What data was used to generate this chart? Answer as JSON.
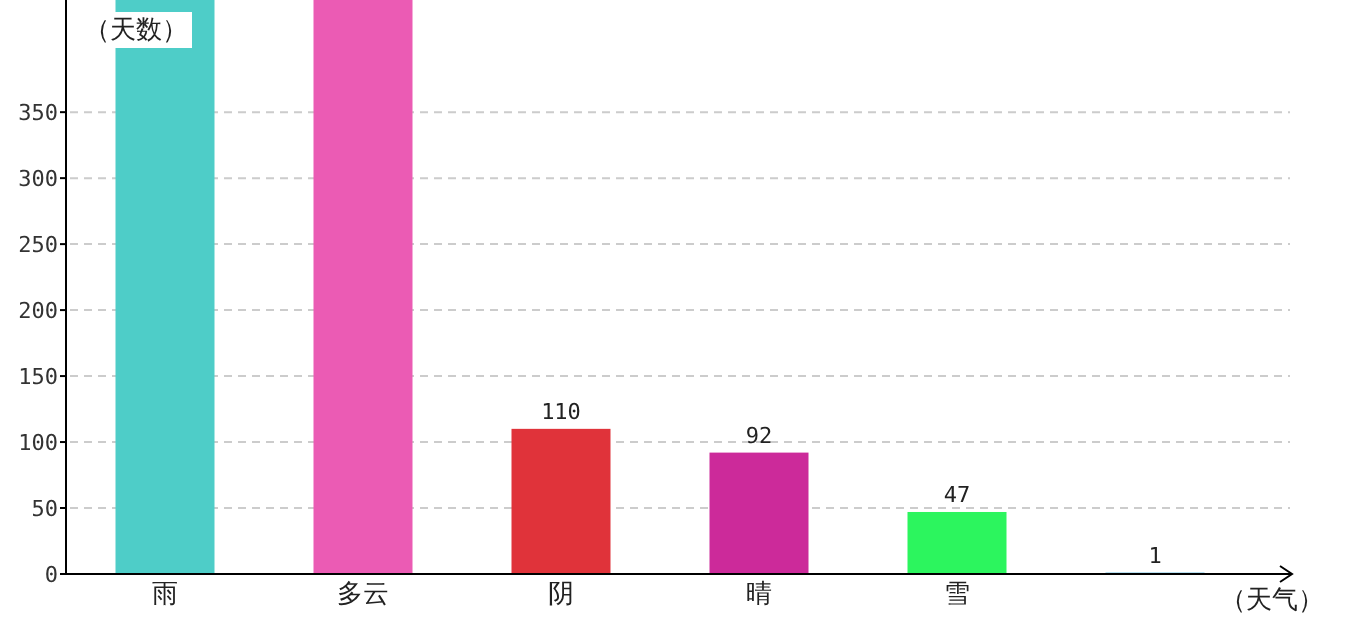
{
  "chart_data": {
    "type": "bar",
    "ylabel": "（天数）",
    "xlabel": "（天气）",
    "categories": [
      "雨",
      "多云",
      "阴",
      "晴",
      "雪",
      null
    ],
    "values": [
      435,
      435,
      110,
      92,
      47,
      1
    ],
    "colors": [
      "#4ecdc8",
      "#eb5bb4",
      "#e0333a",
      "#cc2a9a",
      "#2cf55e",
      "#1f9bd0"
    ],
    "value_labels": [
      null,
      null,
      "110",
      "92",
      "47",
      "1"
    ],
    "ylim": [
      0,
      435
    ],
    "yticks": [
      0,
      50,
      100,
      150,
      200,
      250,
      300,
      350
    ],
    "grid": "y"
  }
}
